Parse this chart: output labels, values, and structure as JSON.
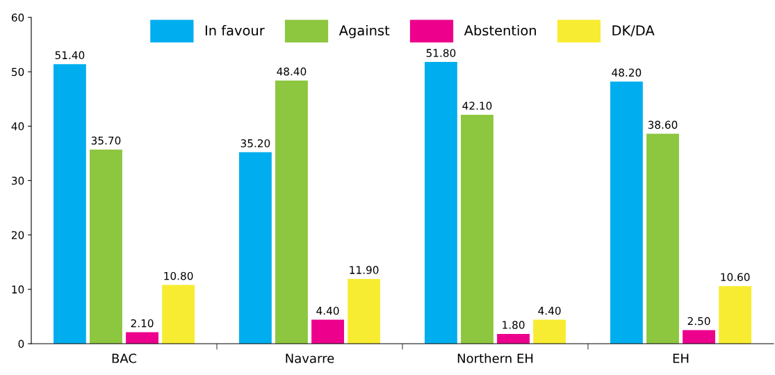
{
  "chart_data": {
    "type": "bar",
    "categories": [
      "BAC",
      "Navarre",
      "Northern EH",
      "EH"
    ],
    "series": [
      {
        "name": "In favour",
        "color": "#00aeef",
        "values": [
          51.4,
          35.2,
          51.8,
          48.2
        ],
        "value_labels": [
          "51.40",
          "35.20",
          "51.80",
          "48.20"
        ]
      },
      {
        "name": "Against",
        "color": "#8dc63f",
        "values": [
          35.7,
          48.4,
          42.1,
          38.6
        ],
        "value_labels": [
          "35.70",
          "48.40",
          "42.10",
          "38.60"
        ]
      },
      {
        "name": "Abstention",
        "color": "#ec008c",
        "values": [
          2.1,
          4.4,
          1.8,
          2.5
        ],
        "value_labels": [
          "2.10",
          "4.40",
          "1.80",
          "2.50"
        ]
      },
      {
        "name": "DK/DA",
        "color": "#f7ec31",
        "values": [
          10.8,
          11.9,
          4.4,
          10.6
        ],
        "value_labels": [
          "10.80",
          "11.90",
          "4.40",
          "10.60"
        ]
      }
    ],
    "ylim": [
      0,
      60
    ],
    "yticks": [
      0,
      10,
      20,
      30,
      40,
      50,
      60
    ],
    "grid": false,
    "legend": "top"
  }
}
